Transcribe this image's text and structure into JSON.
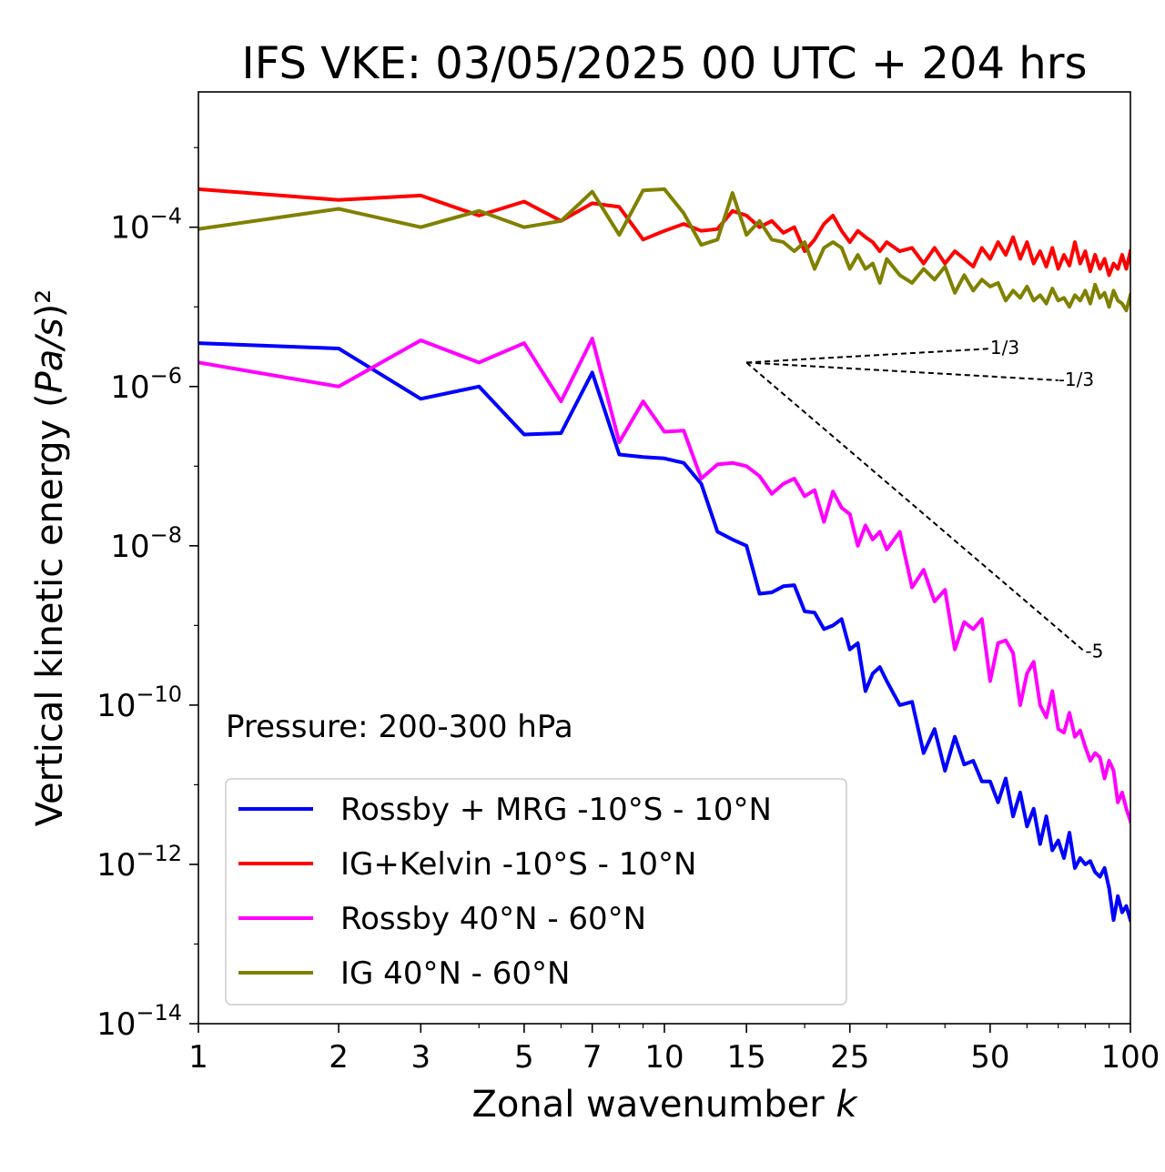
{
  "chart_data": {
    "type": "line",
    "title": "IFS VKE: 03/05/2025 00 UTC + 204 hrs",
    "xlabel": "Zonal wavenumber k",
    "ylabel": "Vertical kinetic energy (Pa/s)²",
    "xscale": "log",
    "yscale": "log",
    "xlim": [
      1,
      100
    ],
    "ylim": [
      1e-14,
      0.005
    ],
    "xticks": [
      {
        "value": 1,
        "label": "1"
      },
      {
        "value": 2,
        "label": "2"
      },
      {
        "value": 3,
        "label": "3"
      },
      {
        "value": 5,
        "label": "5"
      },
      {
        "value": 7,
        "label": "7"
      },
      {
        "value": 10,
        "label": "10"
      },
      {
        "value": 15,
        "label": "15"
      },
      {
        "value": 25,
        "label": "25"
      },
      {
        "value": 50,
        "label": "50"
      },
      {
        "value": 100,
        "label": "100"
      }
    ],
    "yticks": [
      {
        "exp": -4,
        "base": "10",
        "sup": "−4"
      },
      {
        "exp": -6,
        "base": "10",
        "sup": "−6"
      },
      {
        "exp": -8,
        "base": "10",
        "sup": "−8"
      },
      {
        "exp": -10,
        "base": "10",
        "sup": "−10"
      },
      {
        "exp": -12,
        "base": "10",
        "sup": "−12"
      },
      {
        "exp": -14,
        "base": "10",
        "sup": "−14"
      }
    ],
    "annotation": "Pressure: 200-300 hPa",
    "legend_position": "lower-left",
    "grid": false,
    "series": [
      {
        "name": "Rossby + MRG -10°S - 10°N",
        "color": "#0000ff",
        "x": [
          1,
          2,
          3,
          4,
          5,
          6,
          7,
          8,
          9,
          10,
          11,
          12,
          13,
          14,
          15,
          16,
          17,
          18,
          19,
          20,
          21,
          22,
          23,
          24,
          25,
          26,
          27,
          28,
          29,
          30,
          32,
          34,
          36,
          38,
          40,
          42,
          44,
          46,
          48,
          50,
          52,
          54,
          56,
          58,
          60,
          62,
          64,
          66,
          68,
          70,
          72,
          74,
          76,
          78,
          80,
          82,
          84,
          86,
          88,
          90,
          92,
          94,
          96,
          98,
          100
        ],
        "y": [
          3.5e-06,
          3e-06,
          7e-07,
          1e-06,
          2.5e-07,
          2.6e-07,
          1.5e-06,
          1.4e-07,
          1.3e-07,
          1.25e-07,
          1.1e-07,
          6e-08,
          1.5e-08,
          1.2e-08,
          1e-08,
          2.5e-09,
          2.6e-09,
          3.1e-09,
          3.2e-09,
          1.5e-09,
          1.45e-09,
          9e-10,
          1e-09,
          1.2e-09,
          5e-10,
          6e-10,
          1.5e-10,
          2.5e-10,
          3e-10,
          2e-10,
          1e-10,
          1.1e-10,
          2.5e-11,
          5e-11,
          1.5e-11,
          4e-11,
          1.8e-11,
          2e-11,
          1.1e-11,
          1.1e-11,
          6e-12,
          1.2e-11,
          4e-12,
          8e-12,
          3e-12,
          5e-12,
          1.8e-12,
          4e-12,
          1.5e-12,
          2e-12,
          1.2e-12,
          2.5e-12,
          9e-13,
          1.2e-12,
          1e-12,
          1.1e-12,
          8e-13,
          7e-13,
          9e-13,
          5e-13,
          2e-13,
          4e-13,
          2.5e-13,
          3e-13,
          2e-13
        ]
      },
      {
        "name": "IG+Kelvin -10°S - 10°N",
        "color": "#ff0000",
        "x": [
          1,
          2,
          3,
          4,
          5,
          6,
          7,
          8,
          9,
          10,
          11,
          12,
          13,
          14,
          15,
          16,
          17,
          18,
          19,
          20,
          21,
          22,
          23,
          24,
          25,
          26,
          27,
          28,
          29,
          30,
          32,
          34,
          36,
          38,
          40,
          42,
          44,
          46,
          48,
          50,
          52,
          54,
          56,
          58,
          60,
          62,
          64,
          66,
          68,
          70,
          72,
          74,
          76,
          78,
          80,
          82,
          84,
          86,
          88,
          90,
          92,
          94,
          96,
          98,
          100
        ],
        "y": [
          0.0003,
          0.00022,
          0.00025,
          0.00014,
          0.00021,
          0.00012,
          0.0002,
          0.00018,
          7e-05,
          9e-05,
          0.00011,
          9e-05,
          9.5e-05,
          0.00016,
          0.00014,
          0.0001,
          0.00012,
          8.5e-05,
          0.0001,
          5e-05,
          7e-05,
          0.00011,
          0.00014,
          9e-05,
          6.5e-05,
          9e-05,
          7.5e-05,
          6.5e-05,
          5e-05,
          6.5e-05,
          5e-05,
          5.5e-05,
          3.5e-05,
          5.5e-05,
          3.5e-05,
          5e-05,
          4e-05,
          3.2e-05,
          5.5e-05,
          4e-05,
          6.5e-05,
          4.5e-05,
          7.5e-05,
          4e-05,
          6.5e-05,
          3.5e-05,
          5e-05,
          3.2e-05,
          5.5e-05,
          3e-05,
          4.5e-05,
          3.3e-05,
          6.5e-05,
          3.5e-05,
          5e-05,
          2.8e-05,
          4.5e-05,
          3e-05,
          4e-05,
          2.5e-05,
          3.5e-05,
          3e-05,
          4.5e-05,
          3e-05,
          5e-05
        ]
      },
      {
        "name": "Rossby 40°N - 60°N",
        "color": "#ff00ff",
        "x": [
          1,
          2,
          3,
          4,
          5,
          6,
          7,
          8,
          9,
          10,
          11,
          12,
          13,
          14,
          15,
          16,
          17,
          18,
          19,
          20,
          21,
          22,
          23,
          24,
          25,
          26,
          27,
          28,
          29,
          30,
          32,
          34,
          36,
          38,
          40,
          42,
          44,
          46,
          48,
          50,
          52,
          54,
          56,
          58,
          60,
          62,
          64,
          66,
          68,
          70,
          72,
          74,
          76,
          78,
          80,
          82,
          84,
          86,
          88,
          90,
          92,
          94,
          96,
          98,
          100
        ],
        "y": [
          2e-06,
          1e-06,
          3.8e-06,
          2e-06,
          3.5e-06,
          6.5e-07,
          4e-06,
          2e-07,
          6.5e-07,
          2.7e-07,
          2.8e-07,
          7e-08,
          1.05e-07,
          1.1e-07,
          1e-07,
          7.5e-08,
          4.5e-08,
          6e-08,
          7e-08,
          4.2e-08,
          5e-08,
          2e-08,
          4.8e-08,
          3e-08,
          2.5e-08,
          1e-08,
          1.8e-08,
          1.2e-08,
          1.5e-08,
          9e-09,
          1.5e-08,
          3e-09,
          5e-09,
          2e-09,
          2.8e-09,
          5e-10,
          1.1e-09,
          9e-10,
          1.2e-09,
          2e-10,
          6e-10,
          6.5e-10,
          4.5e-10,
          1e-10,
          2.5e-10,
          3.5e-10,
          1e-10,
          7e-11,
          1.5e-10,
          5e-11,
          4.5e-11,
          8e-11,
          4e-11,
          4.8e-11,
          3e-11,
          2e-11,
          2.5e-11,
          2.2e-11,
          1.2e-11,
          2e-11,
          1.5e-11,
          6e-12,
          8e-12,
          5e-12,
          3.5e-12
        ]
      },
      {
        "name": "IG 40°N - 60°N",
        "color": "#808000",
        "x": [
          1,
          2,
          3,
          4,
          5,
          6,
          7,
          8,
          9,
          10,
          11,
          12,
          13,
          14,
          15,
          16,
          17,
          18,
          19,
          20,
          21,
          22,
          23,
          24,
          25,
          26,
          27,
          28,
          29,
          30,
          32,
          34,
          36,
          38,
          40,
          42,
          44,
          46,
          48,
          50,
          52,
          54,
          56,
          58,
          60,
          62,
          64,
          66,
          68,
          70,
          72,
          74,
          76,
          78,
          80,
          82,
          84,
          86,
          88,
          90,
          92,
          94,
          96,
          98,
          100
        ],
        "y": [
          9.5e-05,
          0.00017,
          0.0001,
          0.00016,
          0.0001,
          0.00012,
          0.00028,
          8e-05,
          0.00029,
          0.0003,
          0.00015,
          6e-05,
          7e-05,
          0.00027,
          8e-05,
          0.00012,
          7e-05,
          6.5e-05,
          5e-05,
          6.5e-05,
          3e-05,
          5.5e-05,
          6.5e-05,
          5.5e-05,
          3e-05,
          4.5e-05,
          3e-05,
          3.5e-05,
          2e-05,
          4e-05,
          2.5e-05,
          2e-05,
          3e-05,
          2.2e-05,
          3.2e-05,
          1.5e-05,
          2.5e-05,
          1.6e-05,
          2.2e-05,
          1.8e-05,
          2e-05,
          1.2e-05,
          1.6e-05,
          1.3e-05,
          1.8e-05,
          1.2e-05,
          1.4e-05,
          1.1e-05,
          1.7e-05,
          1.2e-05,
          1.3e-05,
          1e-05,
          1.4e-05,
          1.2e-05,
          1.6e-05,
          1.1e-05,
          1.9e-05,
          1.3e-05,
          1.5e-05,
          1e-05,
          1.6e-05,
          1.2e-05,
          1.1e-05,
          9e-06,
          1.4e-05
        ]
      }
    ],
    "reference_lines": [
      {
        "label": "1/3",
        "slope": 0.333333,
        "x0": 15,
        "y0": 2e-06,
        "x1": 50
      },
      {
        "label": "-1/3",
        "slope": -0.333333,
        "x0": 15,
        "y0": 2e-06,
        "x1": 70
      },
      {
        "label": "-5",
        "slope": -5,
        "x0": 15,
        "y0": 2e-06,
        "x1": 80
      }
    ]
  }
}
